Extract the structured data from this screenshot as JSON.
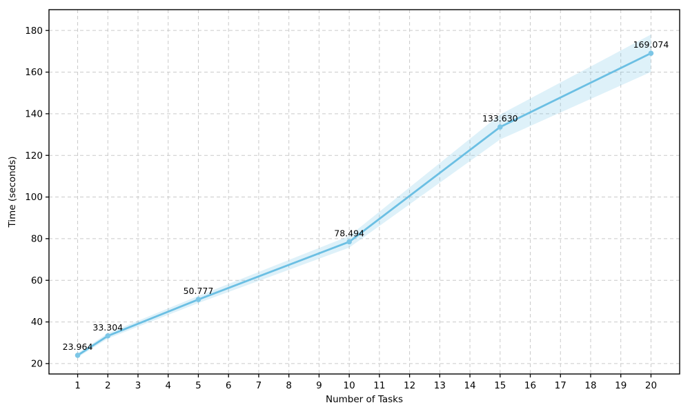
{
  "figure": {
    "background": "#ffffff"
  },
  "chart_data": {
    "type": "line",
    "title": "",
    "xlabel": "Number of Tasks",
    "ylabel": "Time (seconds)",
    "x": [
      1,
      2,
      5,
      10,
      15,
      20
    ],
    "y": [
      23.964,
      33.304,
      50.777,
      78.494,
      133.63,
      169.074
    ],
    "point_labels": [
      "23.964",
      "33.304",
      "50.777",
      "78.494",
      "133.630",
      "169.074"
    ],
    "ci_halfwidth": [
      1.0,
      1.3,
      1.7,
      2.8,
      6.0,
      9.0
    ],
    "xticks": [
      1,
      2,
      3,
      4,
      5,
      6,
      7,
      8,
      9,
      10,
      11,
      12,
      13,
      14,
      15,
      16,
      17,
      18,
      19,
      20
    ],
    "yticks": [
      20,
      40,
      60,
      80,
      100,
      120,
      140,
      160,
      180
    ],
    "xlim": [
      0.05,
      20.95
    ],
    "ylim": [
      15,
      190
    ],
    "grid": true,
    "grid_style": "dashed",
    "legend_position": "none",
    "colors": {
      "line": "#6bbfe3",
      "marker": "#7cc6e6",
      "band": "#6bbfe3",
      "band_opacity": 0.22,
      "grid": "#c9c9c9",
      "spine": "#000000",
      "text": "#000000"
    }
  }
}
